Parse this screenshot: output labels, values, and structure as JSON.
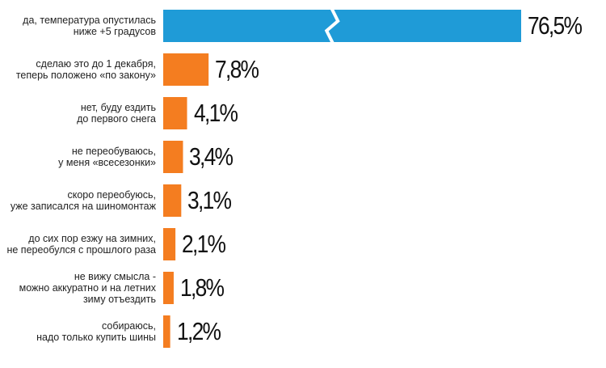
{
  "chart_data": {
    "type": "bar",
    "orientation": "horizontal",
    "categories": [
      "да, температура опустилась\nниже +5 градусов",
      "сделаю это до 1 декабря,\nтеперь положено «по закону»",
      "нет, буду ездить\nдо первого снега",
      "не переобуваюсь,\nу меня «всесезонки»",
      "скоро переобуюсь,\nуже записался на шиномонтаж",
      "до сих пор езжу на зимних,\nне переобулся с прошлого раза",
      "не вижу смысла -\nможно аккуратно и на летних\nзиму отъездить",
      "собираюсь,\nнадо только купить шины"
    ],
    "values": [
      76.5,
      7.8,
      4.1,
      3.4,
      3.1,
      2.1,
      1.8,
      1.2
    ],
    "value_labels": [
      "76,5%",
      "7,8%",
      "4,1%",
      "3,4%",
      "3,1%",
      "2,1%",
      "1,8%",
      "1,2%"
    ],
    "colors": [
      "#1f9bd7",
      "#f47d20",
      "#f47d20",
      "#f47d20",
      "#f47d20",
      "#f47d20",
      "#f47d20",
      "#f47d20"
    ]
  }
}
